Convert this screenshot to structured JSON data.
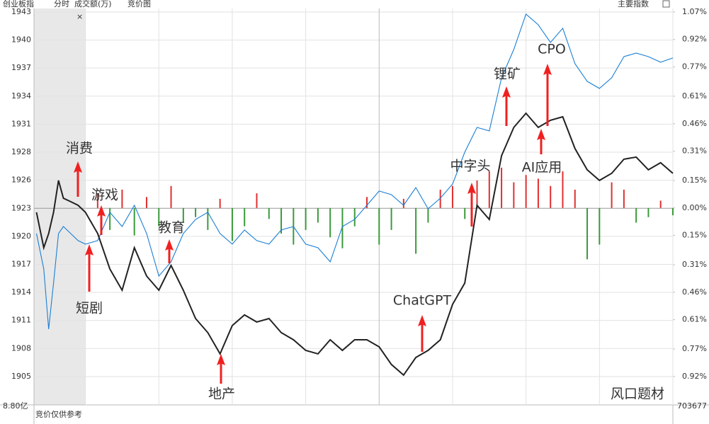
{
  "header": {
    "title": "创业板指",
    "mode": "分时",
    "metric": "成交额(万)",
    "auction": "竞价图",
    "index_menu": "主要指数"
  },
  "footer": {
    "volume": "8.80亿",
    "note": "竞价仅供参考",
    "right_value": "703677"
  },
  "chart_data": {
    "type": "line",
    "x": [
      -20,
      -17,
      -15,
      -13,
      -11,
      -9,
      -6,
      -3,
      0,
      5,
      10,
      15,
      20,
      25,
      30,
      35,
      40,
      45,
      50,
      55,
      60,
      65,
      70,
      75,
      80,
      85,
      90,
      95,
      100,
      105,
      110,
      115,
      120,
      125,
      130,
      135,
      140,
      145,
      150,
      155,
      160,
      165,
      170,
      175,
      180,
      185,
      190,
      195,
      200,
      205,
      210,
      215,
      220,
      225,
      230,
      235,
      240
    ],
    "xlim": [
      -21,
      240
    ],
    "xticks": [
      0,
      30,
      60,
      90,
      120,
      150,
      180,
      210,
      240
    ],
    "ylim": [
      1903.01,
      1943.72
    ],
    "yticks": [
      {
        "value": 1943.36,
        "label": "1943"
      },
      {
        "value": 1940.48,
        "label": "1940"
      },
      {
        "value": 1937.6,
        "label": "1937"
      },
      {
        "value": 1934.72,
        "label": "1934"
      },
      {
        "value": 1931.84,
        "label": "1931"
      },
      {
        "value": 1928.96,
        "label": "1928"
      },
      {
        "value": 1926.08,
        "label": "1926"
      },
      {
        "value": 1923.2,
        "label": "1923"
      },
      {
        "value": 1920.32,
        "label": "1920"
      },
      {
        "value": 1917.44,
        "label": "1917"
      },
      {
        "value": 1914.56,
        "label": "1914"
      },
      {
        "value": 1911.68,
        "label": "1911"
      },
      {
        "value": 1908.8,
        "label": "1908"
      },
      {
        "value": 1905.92,
        "label": "1905"
      }
    ],
    "y2lim": [
      -1.075,
      1.089
    ],
    "y2ticks": [
      {
        "value": 1.07,
        "label": "1.07%"
      },
      {
        "value": 0.92,
        "label": "0.92%"
      },
      {
        "value": 0.77,
        "label": "0.77%"
      },
      {
        "value": 0.61,
        "label": "0.61%"
      },
      {
        "value": 0.46,
        "label": "0.46%"
      },
      {
        "value": 0.31,
        "label": "0.31%"
      },
      {
        "value": 0.15,
        "label": "0.15%"
      },
      {
        "value": 0,
        "label": "0.00%"
      },
      {
        "value": -0.15,
        "label": "0.15%"
      },
      {
        "value": -0.31,
        "label": "0.31%"
      },
      {
        "value": -0.46,
        "label": "0.46%"
      },
      {
        "value": -0.61,
        "label": "0.61%"
      },
      {
        "value": -0.77,
        "label": "0.77%"
      },
      {
        "value": -0.92,
        "label": "0.92%"
      }
    ],
    "grid": true,
    "series": [
      {
        "color": "#1a7fd4",
        "values": [
          1920.61,
          1916.97,
          1910.79,
          1915.52,
          1920.61,
          1921.33,
          1920.61,
          1919.88,
          1919.52,
          1919.88,
          1922.79,
          1921.33,
          1923.51,
          1920.61,
          1916.24,
          1917.7,
          1920.61,
          1922.06,
          1922.79,
          1920.61,
          1919.52,
          1920.97,
          1919.88,
          1919.52,
          1920.97,
          1921.33,
          1919.52,
          1919.15,
          1917.7,
          1921.33,
          1922.06,
          1923.51,
          1924.97,
          1924.6,
          1923.51,
          1925.33,
          1923.15,
          1924.24,
          1925.69,
          1928.97,
          1931.51,
          1931.15,
          1936.6,
          1939.51,
          1943.14,
          1942.05,
          1940.23,
          1941.69,
          1938.05,
          1936.24,
          1935.51,
          1936.6,
          1938.78,
          1939.14,
          1938.78,
          1938.2,
          1938.64
        ]
      },
      {
        "color": "#222222",
        "values": [
          1922.79,
          1919.15,
          1920.61,
          1922.79,
          1926.06,
          1924.24,
          1923.88,
          1923.51,
          1922.79,
          1920.61,
          1916.97,
          1914.79,
          1919.15,
          1916.24,
          1914.79,
          1917.33,
          1914.79,
          1911.88,
          1910.43,
          1908.25,
          1911.15,
          1912.25,
          1911.52,
          1911.88,
          1910.43,
          1909.7,
          1908.61,
          1908.25,
          1909.7,
          1908.61,
          1909.7,
          1909.7,
          1908.97,
          1907.16,
          1906.07,
          1907.88,
          1908.61,
          1909.7,
          1913.34,
          1915.52,
          1923.51,
          1922.06,
          1928.6,
          1931.51,
          1932.96,
          1931.51,
          1932.24,
          1932.6,
          1929.33,
          1927.15,
          1926.06,
          1926.79,
          1928.24,
          1928.46,
          1927.15,
          1927.88,
          1926.79
        ]
      },
      {
        "type": "bar",
        "axis": "y2",
        "colors": {
          "up": "#e03030",
          "down": "#3a9a3a"
        },
        "values": [
          null,
          null,
          null,
          null,
          null,
          null,
          null,
          null,
          null,
          0.08,
          -0.12,
          0.1,
          -0.15,
          0.06,
          -0.1,
          0.12,
          -0.08,
          -0.05,
          -0.12,
          0.05,
          -0.18,
          -0.1,
          0.08,
          -0.06,
          -0.14,
          -0.2,
          -0.12,
          -0.08,
          -0.16,
          -0.22,
          -0.1,
          0.06,
          -0.2,
          -0.12,
          0.05,
          -0.25,
          -0.08,
          0.1,
          0.12,
          -0.06,
          0.15,
          0.2,
          0.22,
          0.14,
          0.18,
          0.16,
          0.12,
          0.2,
          0.1,
          -0.28,
          -0.2,
          0.14,
          0.1,
          -0.08,
          -0.05,
          0.04,
          -0.04
        ]
      }
    ],
    "annotations": [
      "消费",
      "游戏",
      "短剧",
      "教育",
      "地产",
      "ChatGPT",
      "中字头",
      "锂矿",
      "CPO",
      "AI应用",
      "风口题材"
    ]
  }
}
